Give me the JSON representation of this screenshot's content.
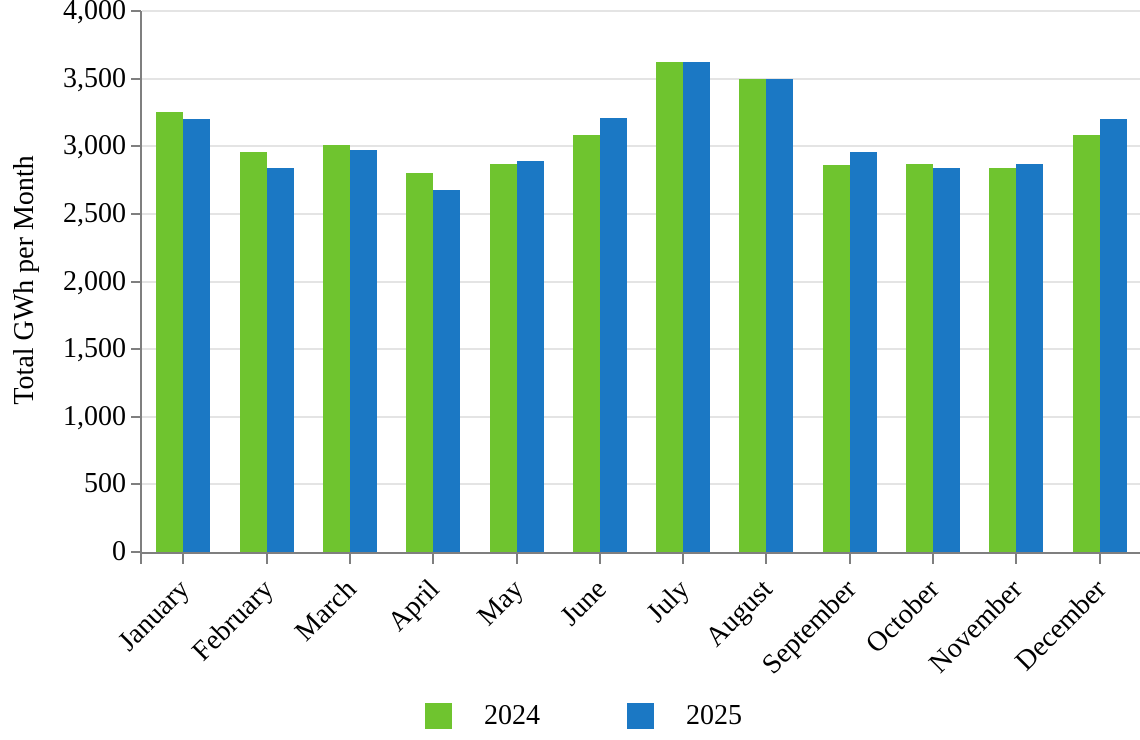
{
  "chart_data": {
    "type": "bar",
    "ylabel": "Total GWh per Month",
    "categories": [
      "January",
      "February",
      "March",
      "April",
      "May",
      "June",
      "July",
      "August",
      "September",
      "October",
      "November",
      "December"
    ],
    "series": [
      {
        "name": "2024",
        "color": "#6FC42F",
        "values": [
          3250,
          2960,
          3010,
          2800,
          2870,
          3080,
          3620,
          3500,
          2860,
          2870,
          2840,
          3080
        ]
      },
      {
        "name": "2025",
        "color": "#1B78C4",
        "values": [
          3200,
          2840,
          2970,
          2680,
          2890,
          3210,
          3620,
          3500,
          2960,
          2840,
          2870,
          3200
        ]
      }
    ],
    "ylim": [
      0,
      4000
    ],
    "ytick_step": 500,
    "ytick_labels": [
      "0",
      "500",
      "1,000",
      "1,500",
      "2,000",
      "2,500",
      "3,000",
      "3,500",
      "4,000"
    ],
    "grid": true,
    "legend_position": "bottom",
    "axis_color": "#7F7F7F",
    "gridline_color": "#E4E4E4"
  }
}
